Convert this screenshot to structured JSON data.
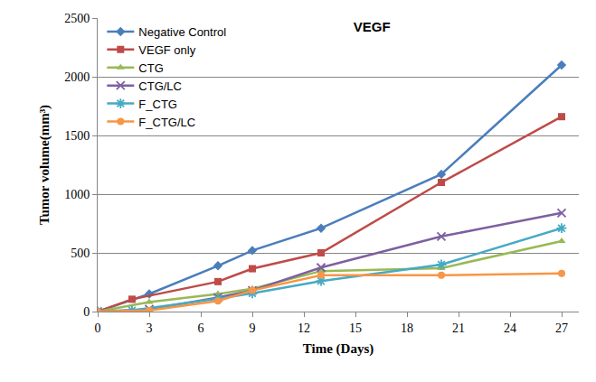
{
  "chart_data": {
    "type": "line",
    "title": "VEGF",
    "x_label": "Time (Days)",
    "y_label": "Tumor volume(mm³)",
    "x": [
      0,
      2,
      3,
      7,
      9,
      13,
      20,
      27
    ],
    "series": [
      {
        "name": "Negative Control",
        "color": "#4a7ebb",
        "marker": "diamond",
        "values": [
          0,
          null,
          150,
          390,
          520,
          710,
          1170,
          2100
        ]
      },
      {
        "name": "VEGF only",
        "color": "#be4b48",
        "marker": "square",
        "values": [
          0,
          105,
          null,
          255,
          365,
          500,
          1100,
          1660
        ]
      },
      {
        "name": "CTG",
        "color": "#98b954",
        "marker": "triangle",
        "values": [
          0,
          null,
          80,
          150,
          195,
          345,
          370,
          600
        ]
      },
      {
        "name": "CTG/LC",
        "color": "#7d60a0",
        "marker": "x",
        "values": [
          0,
          null,
          20,
          120,
          180,
          375,
          640,
          840
        ]
      },
      {
        "name": "F_CTG",
        "color": "#46aac5",
        "marker": "asterisk",
        "values": [
          0,
          10,
          null,
          110,
          155,
          260,
          400,
          710
        ]
      },
      {
        "name": "F_CTG/LC",
        "color": "#f79646",
        "marker": "circle",
        "values": [
          0,
          null,
          10,
          90,
          180,
          310,
          310,
          325
        ]
      }
    ],
    "xlim": [
      0,
      28
    ],
    "xticks": [
      0,
      3,
      6,
      9,
      12,
      15,
      18,
      21,
      24,
      27
    ],
    "ylim": [
      0,
      2500
    ],
    "yticks": [
      0,
      500,
      1000,
      1500,
      2000,
      2500
    ],
    "grid": true,
    "legend": "top left"
  }
}
